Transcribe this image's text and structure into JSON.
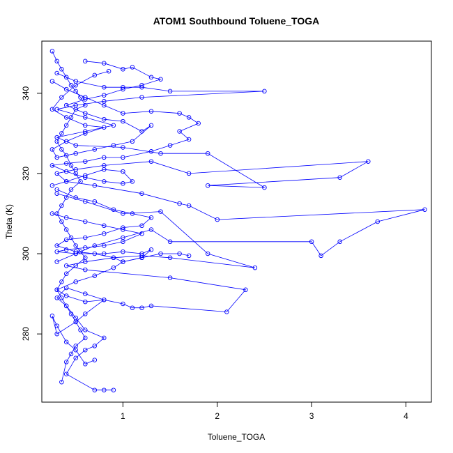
{
  "chart_data": {
    "type": "line",
    "title": "ATOM1 Southbound Toluene_TOGA",
    "xlabel": "Toluene_TOGA",
    "ylabel": "Theta (K)",
    "xlim": [
      0.14,
      4.27
    ],
    "ylim": [
      263,
      353
    ],
    "xticks": [
      1,
      2,
      3,
      4
    ],
    "yticks": [
      280,
      300,
      320,
      340
    ],
    "grid": false,
    "color": "#0000ff",
    "marker": "open-circle",
    "series": [
      {
        "points": [
          [
            0.25,
            350.5
          ],
          [
            0.3,
            348.0
          ],
          [
            0.35,
            346.0
          ],
          [
            0.4,
            344.0
          ],
          [
            0.45,
            342.0
          ],
          [
            0.5,
            340.5
          ],
          [
            0.55,
            339.0
          ],
          [
            0.6,
            337.0
          ],
          [
            0.5,
            336.0
          ],
          [
            0.45,
            334.0
          ],
          [
            0.4,
            332.0
          ],
          [
            0.35,
            330.0
          ],
          [
            0.3,
            328.0
          ],
          [
            0.35,
            326.0
          ],
          [
            0.4,
            324.5
          ],
          [
            0.45,
            322.0
          ],
          [
            0.5,
            320.0
          ],
          [
            0.55,
            318.0
          ],
          [
            0.45,
            316.0
          ],
          [
            0.4,
            314.0
          ],
          [
            0.35,
            312.0
          ],
          [
            0.3,
            310.0
          ],
          [
            0.35,
            308.0
          ],
          [
            0.4,
            306.0
          ],
          [
            0.45,
            304.0
          ],
          [
            0.5,
            302.0
          ],
          [
            0.55,
            300.5
          ],
          [
            0.6,
            299.0
          ],
          [
            0.5,
            297.0
          ],
          [
            0.4,
            295.0
          ],
          [
            0.35,
            293.0
          ],
          [
            0.3,
            291.0
          ],
          [
            0.35,
            289.0
          ],
          [
            0.4,
            287.0
          ],
          [
            0.45,
            285.0
          ],
          [
            0.5,
            283.0
          ],
          [
            0.55,
            281.0
          ],
          [
            0.6,
            279.0
          ],
          [
            0.5,
            277.0
          ],
          [
            0.45,
            275.0
          ],
          [
            0.4,
            273.0
          ],
          [
            0.35,
            268.0
          ]
        ]
      },
      {
        "points": [
          [
            0.3,
            345.0
          ],
          [
            0.5,
            343.0
          ],
          [
            0.8,
            341.5
          ],
          [
            1.0,
            341.5
          ],
          [
            1.2,
            341.5
          ],
          [
            1.5,
            340.5
          ],
          [
            2.5,
            340.5
          ],
          [
            1.2,
            339.0
          ],
          [
            0.8,
            338.0
          ],
          [
            0.5,
            337.0
          ],
          [
            0.3,
            336.0
          ],
          [
            0.6,
            334.0
          ],
          [
            0.9,
            332.0
          ],
          [
            0.6,
            330.5
          ],
          [
            0.3,
            329.0
          ],
          [
            0.5,
            327.0
          ],
          [
            1.0,
            326.5
          ],
          [
            1.4,
            325.0
          ],
          [
            1.9,
            325.0
          ],
          [
            2.5,
            316.5
          ],
          [
            1.9,
            317.0
          ],
          [
            3.3,
            319.0
          ],
          [
            3.6,
            323.0
          ],
          [
            1.7,
            320.0
          ],
          [
            1.3,
            323.0
          ],
          [
            0.8,
            322.0
          ],
          [
            0.5,
            321.0
          ],
          [
            0.3,
            320.0
          ],
          [
            0.4,
            318.0
          ],
          [
            0.7,
            317.0
          ],
          [
            1.2,
            315.0
          ],
          [
            1.6,
            312.5
          ],
          [
            1.7,
            312.0
          ],
          [
            2.0,
            308.5
          ],
          [
            4.2,
            311.0
          ],
          [
            3.7,
            308.0
          ],
          [
            3.3,
            303.0
          ],
          [
            3.1,
            299.5
          ],
          [
            3.0,
            303.0
          ],
          [
            1.5,
            303.0
          ],
          [
            1.3,
            306.0
          ],
          [
            1.0,
            304.0
          ],
          [
            0.7,
            302.0
          ],
          [
            0.5,
            300.0
          ],
          [
            0.3,
            298.0
          ]
        ]
      },
      {
        "points": [
          [
            0.3,
            315.0
          ],
          [
            0.6,
            313.0
          ],
          [
            1.0,
            310.0
          ],
          [
            1.4,
            310.5
          ],
          [
            1.9,
            300.0
          ],
          [
            2.4,
            296.5
          ],
          [
            1.5,
            299.0
          ],
          [
            1.2,
            299.5
          ],
          [
            0.9,
            299.0
          ],
          [
            0.6,
            298.0
          ],
          [
            0.4,
            297.0
          ],
          [
            0.6,
            296.0
          ],
          [
            1.5,
            294.0
          ],
          [
            2.3,
            291.0
          ],
          [
            2.1,
            285.5
          ],
          [
            1.3,
            287.0
          ],
          [
            1.2,
            286.5
          ],
          [
            1.1,
            286.5
          ],
          [
            1.0,
            287.5
          ],
          [
            0.8,
            288.5
          ],
          [
            0.6,
            290.0
          ],
          [
            0.4,
            291.5
          ],
          [
            0.3,
            289.0
          ],
          [
            0.4,
            287.0
          ],
          [
            0.5,
            284.0
          ],
          [
            0.6,
            281.0
          ],
          [
            0.8,
            279.0
          ],
          [
            0.7,
            277.0
          ],
          [
            0.6,
            276.0
          ],
          [
            0.5,
            274.0
          ],
          [
            0.4,
            270.0
          ],
          [
            0.7,
            266.0
          ],
          [
            0.8,
            266.0
          ],
          [
            0.9,
            266.0
          ]
        ]
      },
      {
        "points": [
          [
            0.25,
            343.0
          ],
          [
            0.4,
            341.0
          ],
          [
            0.6,
            339.0
          ],
          [
            0.8,
            337.0
          ],
          [
            1.0,
            335.0
          ],
          [
            1.3,
            335.5
          ],
          [
            1.6,
            335.0
          ],
          [
            1.7,
            334.0
          ],
          [
            1.8,
            332.5
          ],
          [
            1.6,
            330.5
          ],
          [
            1.7,
            328.5
          ],
          [
            1.5,
            327.0
          ],
          [
            1.3,
            325.5
          ],
          [
            1.0,
            324.0
          ],
          [
            0.8,
            324.0
          ],
          [
            0.6,
            323.0
          ],
          [
            0.4,
            322.5
          ],
          [
            0.25,
            322.0
          ],
          [
            0.4,
            320.5
          ],
          [
            0.6,
            319.0
          ],
          [
            0.8,
            318.0
          ],
          [
            1.0,
            317.5
          ],
          [
            1.1,
            318.0
          ],
          [
            1.0,
            320.5
          ],
          [
            0.8,
            321.0
          ],
          [
            0.6,
            319.5
          ],
          [
            0.4,
            318.0
          ],
          [
            0.25,
            317.0
          ]
        ]
      },
      {
        "points": [
          [
            0.25,
            310.0
          ],
          [
            0.4,
            309.0
          ],
          [
            0.6,
            308.0
          ],
          [
            0.8,
            307.0
          ],
          [
            1.0,
            306.0
          ],
          [
            1.2,
            305.0
          ],
          [
            1.0,
            303.0
          ],
          [
            0.8,
            302.0
          ],
          [
            0.6,
            301.5
          ],
          [
            0.4,
            301.0
          ],
          [
            0.3,
            300.5
          ],
          [
            0.5,
            300.0
          ],
          [
            0.8,
            300.0
          ],
          [
            1.0,
            300.5
          ],
          [
            1.2,
            300.0
          ],
          [
            1.3,
            301.0
          ],
          [
            1.2,
            299.0
          ],
          [
            1.0,
            298.0
          ],
          [
            0.9,
            296.5
          ],
          [
            0.7,
            294.5
          ],
          [
            0.5,
            293.0
          ],
          [
            0.3,
            291.0
          ],
          [
            0.4,
            289.5
          ],
          [
            0.6,
            288.0
          ],
          [
            0.8,
            288.5
          ],
          [
            0.6,
            285.0
          ],
          [
            0.5,
            283.0
          ],
          [
            0.3,
            280.0
          ],
          [
            0.25,
            284.5
          ],
          [
            0.3,
            282.0
          ],
          [
            0.4,
            278.0
          ],
          [
            0.5,
            276.0
          ],
          [
            0.6,
            272.5
          ],
          [
            0.7,
            273.5
          ]
        ]
      },
      {
        "points": [
          [
            0.6,
            348.0
          ],
          [
            0.8,
            347.5
          ],
          [
            1.0,
            346.0
          ],
          [
            1.1,
            346.5
          ],
          [
            1.3,
            344.0
          ],
          [
            1.4,
            343.5
          ],
          [
            1.2,
            342.0
          ],
          [
            1.0,
            341.0
          ],
          [
            0.8,
            339.5
          ],
          [
            0.6,
            338.5
          ],
          [
            0.4,
            337.0
          ],
          [
            0.6,
            335.0
          ],
          [
            0.8,
            333.5
          ],
          [
            1.0,
            333.0
          ],
          [
            1.2,
            330.5
          ],
          [
            1.3,
            332.0
          ],
          [
            1.1,
            328.0
          ],
          [
            0.9,
            327.0
          ],
          [
            0.7,
            326.0
          ],
          [
            0.5,
            325.0
          ],
          [
            0.3,
            324.0
          ],
          [
            0.25,
            326.0
          ],
          [
            0.4,
            328.0
          ],
          [
            0.6,
            330.0
          ],
          [
            0.8,
            331.5
          ],
          [
            0.6,
            332.0
          ],
          [
            0.4,
            334.0
          ],
          [
            0.25,
            336.0
          ],
          [
            0.35,
            339.0
          ],
          [
            0.5,
            342.0
          ],
          [
            0.7,
            344.5
          ],
          [
            0.85,
            345.5
          ]
        ]
      },
      {
        "points": [
          [
            0.3,
            316.0
          ],
          [
            0.5,
            314.0
          ],
          [
            0.7,
            313.0
          ],
          [
            0.9,
            311.0
          ],
          [
            1.1,
            310.0
          ],
          [
            1.3,
            309.0
          ],
          [
            1.2,
            307.0
          ],
          [
            1.0,
            306.5
          ],
          [
            0.8,
            305.0
          ],
          [
            0.6,
            304.0
          ],
          [
            0.4,
            303.5
          ],
          [
            0.3,
            302.0
          ],
          [
            0.5,
            300.5
          ],
          [
            0.7,
            300.0
          ],
          [
            0.9,
            299.0
          ],
          [
            1.0,
            298.0
          ],
          [
            1.2,
            299.0
          ],
          [
            1.4,
            300.0
          ],
          [
            1.6,
            300.0
          ],
          [
            1.7,
            299.5
          ]
        ]
      }
    ]
  }
}
